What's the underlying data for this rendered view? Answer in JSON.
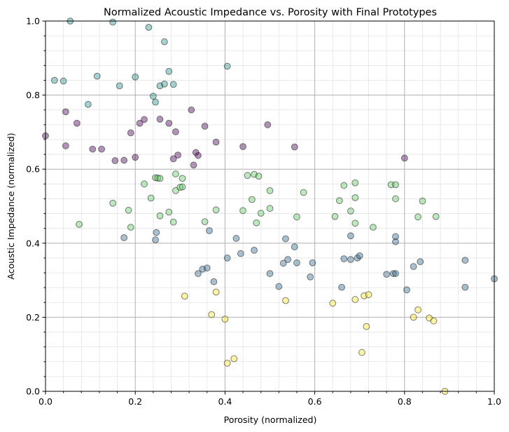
{
  "chart_data": {
    "type": "scatter",
    "title": "Normalized Acoustic Impedance vs. Porosity with Final Prototypes",
    "xlabel": "Porosity (normalized)",
    "ylabel": "Acoustic Impedance (normalized)",
    "xlim": [
      0,
      1
    ],
    "ylim": [
      0,
      1
    ],
    "xticks": [
      0,
      0.2,
      0.4,
      0.6,
      0.8,
      1.0
    ],
    "yticks": [
      0,
      0.2,
      0.4,
      0.6,
      0.8,
      1.0
    ],
    "xtick_labels": [
      "0.0",
      "0.2",
      "0.4",
      "0.6",
      "0.8",
      "1.0"
    ],
    "ytick_labels": [
      "0.0",
      "0.2",
      "0.4",
      "0.6",
      "0.8",
      "1.0"
    ],
    "grid": true,
    "minor_grid": true,
    "series": [
      {
        "color": "#440154",
        "points": [
          [
            0.0,
            0.69
          ],
          [
            0.045,
            0.755
          ],
          [
            0.045,
            0.663
          ],
          [
            0.07,
            0.724
          ],
          [
            0.105,
            0.654
          ],
          [
            0.125,
            0.654
          ],
          [
            0.155,
            0.623
          ],
          [
            0.175,
            0.624
          ],
          [
            0.19,
            0.698
          ],
          [
            0.2,
            0.632
          ],
          [
            0.21,
            0.724
          ],
          [
            0.22,
            0.734
          ],
          [
            0.255,
            0.735
          ],
          [
            0.275,
            0.724
          ],
          [
            0.29,
            0.701
          ],
          [
            0.285,
            0.628
          ],
          [
            0.295,
            0.638
          ],
          [
            0.325,
            0.76
          ],
          [
            0.33,
            0.611
          ],
          [
            0.335,
            0.645
          ],
          [
            0.34,
            0.637
          ],
          [
            0.355,
            0.716
          ],
          [
            0.38,
            0.673
          ],
          [
            0.44,
            0.661
          ],
          [
            0.495,
            0.72
          ],
          [
            0.555,
            0.66
          ],
          [
            0.8,
            0.63
          ]
        ]
      },
      {
        "color": "#31688e",
        "points": [
          [
            0.175,
            0.415
          ],
          [
            0.245,
            0.409
          ],
          [
            0.247,
            0.429
          ],
          [
            0.34,
            0.318
          ],
          [
            0.35,
            0.33
          ],
          [
            0.36,
            0.333
          ],
          [
            0.365,
            0.434
          ],
          [
            0.375,
            0.296
          ],
          [
            0.405,
            0.36
          ],
          [
            0.425,
            0.413
          ],
          [
            0.435,
            0.372
          ],
          [
            0.465,
            0.381
          ],
          [
            0.5,
            0.318
          ],
          [
            0.52,
            0.283
          ],
          [
            0.53,
            0.346
          ],
          [
            0.535,
            0.412
          ],
          [
            0.54,
            0.356
          ],
          [
            0.555,
            0.39
          ],
          [
            0.56,
            0.347
          ],
          [
            0.59,
            0.309
          ],
          [
            0.595,
            0.347
          ],
          [
            0.66,
            0.281
          ],
          [
            0.665,
            0.358
          ],
          [
            0.68,
            0.356
          ],
          [
            0.68,
            0.42
          ],
          [
            0.695,
            0.36
          ],
          [
            0.7,
            0.366
          ],
          [
            0.76,
            0.316
          ],
          [
            0.775,
            0.318
          ],
          [
            0.78,
            0.318
          ],
          [
            0.78,
            0.404
          ],
          [
            0.78,
            0.418
          ],
          [
            0.805,
            0.274
          ],
          [
            0.82,
            0.337
          ],
          [
            0.835,
            0.35
          ],
          [
            0.935,
            0.281
          ],
          [
            0.935,
            0.354
          ],
          [
            1.0,
            0.304
          ]
        ]
      },
      {
        "color": "#21918c",
        "points": [
          [
            0.02,
            0.84
          ],
          [
            0.04,
            0.838
          ],
          [
            0.055,
            1.0
          ],
          [
            0.095,
            0.775
          ],
          [
            0.115,
            0.851
          ],
          [
            0.15,
            0.997
          ],
          [
            0.165,
            0.825
          ],
          [
            0.2,
            0.849
          ],
          [
            0.23,
            0.983
          ],
          [
            0.24,
            0.797
          ],
          [
            0.245,
            0.781
          ],
          [
            0.255,
            0.825
          ],
          [
            0.265,
            0.83
          ],
          [
            0.265,
            0.944
          ],
          [
            0.275,
            0.864
          ],
          [
            0.285,
            0.829
          ],
          [
            0.405,
            0.878
          ]
        ]
      },
      {
        "color": "#5ec962",
        "points": [
          [
            0.075,
            0.451
          ],
          [
            0.15,
            0.508
          ],
          [
            0.185,
            0.489
          ],
          [
            0.19,
            0.443
          ],
          [
            0.22,
            0.56
          ],
          [
            0.235,
            0.522
          ],
          [
            0.245,
            0.577
          ],
          [
            0.25,
            0.576
          ],
          [
            0.255,
            0.575
          ],
          [
            0.255,
            0.474
          ],
          [
            0.275,
            0.484
          ],
          [
            0.285,
            0.457
          ],
          [
            0.29,
            0.542
          ],
          [
            0.29,
            0.587
          ],
          [
            0.3,
            0.551
          ],
          [
            0.305,
            0.552
          ],
          [
            0.305,
            0.575
          ],
          [
            0.355,
            0.458
          ],
          [
            0.38,
            0.49
          ],
          [
            0.44,
            0.488
          ],
          [
            0.45,
            0.583
          ],
          [
            0.46,
            0.518
          ],
          [
            0.465,
            0.586
          ],
          [
            0.47,
            0.455
          ],
          [
            0.475,
            0.581
          ],
          [
            0.48,
            0.481
          ],
          [
            0.5,
            0.494
          ],
          [
            0.5,
            0.542
          ],
          [
            0.56,
            0.471
          ],
          [
            0.575,
            0.537
          ],
          [
            0.645,
            0.472
          ],
          [
            0.655,
            0.515
          ],
          [
            0.665,
            0.556
          ],
          [
            0.68,
            0.487
          ],
          [
            0.69,
            0.563
          ],
          [
            0.69,
            0.523
          ],
          [
            0.69,
            0.454
          ],
          [
            0.73,
            0.443
          ],
          [
            0.77,
            0.558
          ],
          [
            0.78,
            0.558
          ],
          [
            0.78,
            0.52
          ],
          [
            0.83,
            0.471
          ],
          [
            0.84,
            0.514
          ],
          [
            0.87,
            0.472
          ]
        ]
      },
      {
        "color": "#fde725",
        "points": [
          [
            0.31,
            0.257
          ],
          [
            0.37,
            0.207
          ],
          [
            0.38,
            0.268
          ],
          [
            0.4,
            0.195
          ],
          [
            0.405,
            0.076
          ],
          [
            0.42,
            0.088
          ],
          [
            0.535,
            0.245
          ],
          [
            0.64,
            0.238
          ],
          [
            0.69,
            0.248
          ],
          [
            0.705,
            0.105
          ],
          [
            0.71,
            0.258
          ],
          [
            0.715,
            0.175
          ],
          [
            0.72,
            0.261
          ],
          [
            0.82,
            0.2
          ],
          [
            0.83,
            0.22
          ],
          [
            0.855,
            0.198
          ],
          [
            0.865,
            0.19
          ],
          [
            0.89,
            0.0
          ]
        ]
      }
    ]
  }
}
